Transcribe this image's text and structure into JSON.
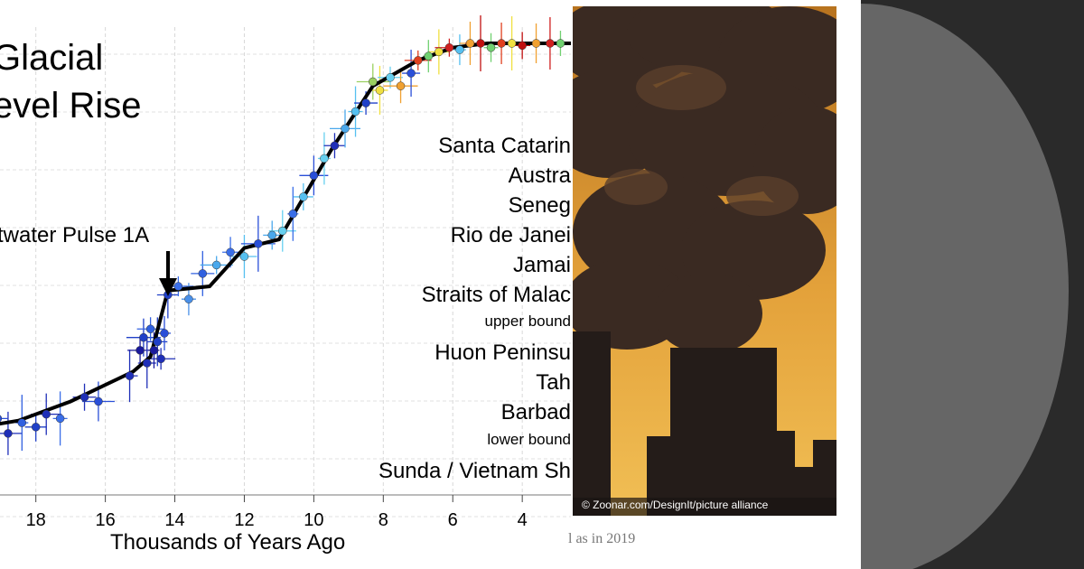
{
  "chart_data": {
    "type": "scatter",
    "title_lines": [
      "Glacial",
      "evel Rise"
    ],
    "xlabel": "Thousands of Years Ago",
    "x_ticks": [
      18,
      16,
      14,
      12,
      10,
      8,
      6,
      4
    ],
    "xlim": [
      19.5,
      2.6
    ],
    "ylim": [
      0,
      1
    ],
    "annotation": "twater Pulse 1A",
    "legend": [
      {
        "label": "Santa Catarin",
        "size": "large"
      },
      {
        "label": "Austra",
        "size": "large"
      },
      {
        "label": "Seneg",
        "size": "large"
      },
      {
        "label": "Rio de Janei",
        "size": "large"
      },
      {
        "label": "Jamai",
        "size": "large"
      },
      {
        "label": "Straits of Malac",
        "size": "large"
      },
      {
        "label": "upper bound",
        "size": "small"
      },
      {
        "label": "Huon Peninsu",
        "size": "large"
      },
      {
        "label": "Tah",
        "size": "large"
      },
      {
        "label": "Barbad",
        "size": "large"
      },
      {
        "label": "lower bound",
        "size": "small"
      },
      {
        "label": "Sunda / Vietnam Sh",
        "size": "large"
      }
    ],
    "curve": [
      [
        19.6,
        0.1
      ],
      [
        18.5,
        0.115
      ],
      [
        17.0,
        0.16
      ],
      [
        15.2,
        0.23
      ],
      [
        14.7,
        0.265
      ],
      [
        14.2,
        0.42
      ],
      [
        13.0,
        0.43
      ],
      [
        12.0,
        0.52
      ],
      [
        11.0,
        0.54
      ],
      [
        10.0,
        0.68
      ],
      [
        9.5,
        0.75
      ],
      [
        8.3,
        0.9
      ],
      [
        7.0,
        0.96
      ],
      [
        6.0,
        0.99
      ],
      [
        5.0,
        1.0
      ],
      [
        2.6,
        1.0
      ]
    ],
    "points": [
      [
        19.4,
        0.09,
        "#1f2fb8"
      ],
      [
        19.1,
        0.12,
        "#2a4fd8"
      ],
      [
        18.8,
        0.085,
        "#1f2fb8"
      ],
      [
        18.4,
        0.11,
        "#3060e0"
      ],
      [
        18.0,
        0.1,
        "#2040c8"
      ],
      [
        17.7,
        0.13,
        "#1f2fb8"
      ],
      [
        17.3,
        0.12,
        "#3a6ee8"
      ],
      [
        16.6,
        0.17,
        "#1f2fb8"
      ],
      [
        16.2,
        0.16,
        "#2a4fd8"
      ],
      [
        15.3,
        0.22,
        "#1f2fb8"
      ],
      [
        15.0,
        0.28,
        "#1a1a9c"
      ],
      [
        14.9,
        0.31,
        "#2040c8"
      ],
      [
        14.8,
        0.25,
        "#1f2fb8"
      ],
      [
        14.7,
        0.33,
        "#3060e0"
      ],
      [
        14.6,
        0.28,
        "#1a1a9c"
      ],
      [
        14.5,
        0.3,
        "#2040c8"
      ],
      [
        14.4,
        0.26,
        "#1f2fb8"
      ],
      [
        14.3,
        0.32,
        "#2a4fd8"
      ],
      [
        14.2,
        0.41,
        "#2040c8"
      ],
      [
        13.9,
        0.43,
        "#3a6ee8"
      ],
      [
        13.6,
        0.4,
        "#4a90e8"
      ],
      [
        13.2,
        0.46,
        "#3060e0"
      ],
      [
        12.8,
        0.48,
        "#4aa8ec"
      ],
      [
        12.4,
        0.51,
        "#3a6ee8"
      ],
      [
        12.0,
        0.5,
        "#56c0f0"
      ],
      [
        11.6,
        0.53,
        "#2a4fd8"
      ],
      [
        11.2,
        0.55,
        "#4aa8ec"
      ],
      [
        10.9,
        0.56,
        "#66d0f0"
      ],
      [
        10.6,
        0.6,
        "#3a6ee8"
      ],
      [
        10.3,
        0.64,
        "#56c0f0"
      ],
      [
        10.0,
        0.69,
        "#2a4fd8"
      ],
      [
        9.7,
        0.73,
        "#66d0f0"
      ],
      [
        9.4,
        0.76,
        "#1f2fb8"
      ],
      [
        9.1,
        0.8,
        "#4aa8ec"
      ],
      [
        8.8,
        0.84,
        "#56c0f0"
      ],
      [
        8.5,
        0.86,
        "#2040c8"
      ],
      [
        8.3,
        0.91,
        "#9ad060"
      ],
      [
        8.1,
        0.89,
        "#f0e040"
      ],
      [
        7.8,
        0.92,
        "#66d0f0"
      ],
      [
        7.5,
        0.9,
        "#f0a030"
      ],
      [
        7.2,
        0.93,
        "#2a4fd8"
      ],
      [
        7.0,
        0.96,
        "#e04020"
      ],
      [
        6.7,
        0.97,
        "#70d070"
      ],
      [
        6.4,
        0.98,
        "#f0e040"
      ],
      [
        6.1,
        0.99,
        "#d02020"
      ],
      [
        5.8,
        0.985,
        "#56c0f0"
      ],
      [
        5.5,
        1.0,
        "#f0a030"
      ],
      [
        5.2,
        1.0,
        "#c01010"
      ],
      [
        4.9,
        0.99,
        "#70d070"
      ],
      [
        4.6,
        1.0,
        "#e04020"
      ],
      [
        4.3,
        1.0,
        "#f0e040"
      ],
      [
        4.0,
        0.995,
        "#c01010"
      ],
      [
        3.6,
        1.0,
        "#f0a030"
      ],
      [
        3.2,
        1.0,
        "#d02020"
      ],
      [
        2.9,
        1.0,
        "#70d070"
      ]
    ]
  },
  "photo": {
    "credit": "© Zoonar.com/DesignIt/picture alliance",
    "caption": "l as in 2019"
  },
  "colors": {
    "sky": "#e8a33b",
    "smoke": "#3a2a22",
    "plant": "#241c19",
    "side_dark": "#2a2a2a",
    "side_circle": "#666666"
  }
}
